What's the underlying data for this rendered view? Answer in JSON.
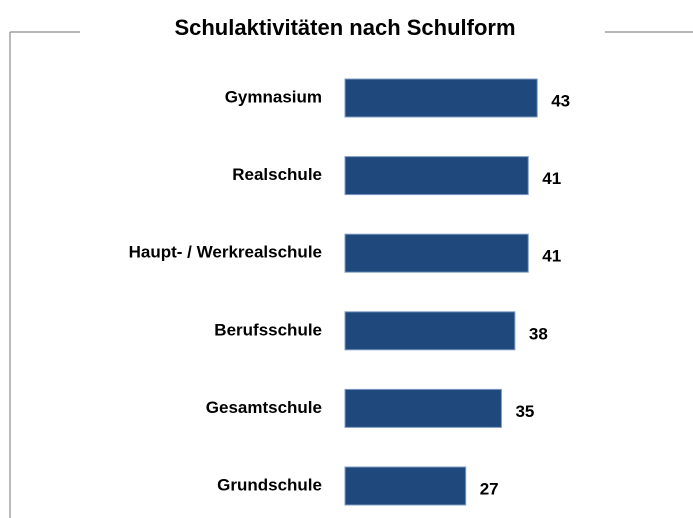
{
  "chart_data": {
    "type": "bar",
    "orientation": "horizontal",
    "title": "Schulaktivitäten nach Schulform",
    "categories": [
      "Gymnasium",
      "Realschule",
      "Haupt- / Werkrealschule",
      "Berufsschule",
      "Gesamtschule",
      "Grundschule"
    ],
    "values": [
      43,
      41,
      41,
      38,
      35,
      27
    ],
    "color": "#1f497d"
  }
}
